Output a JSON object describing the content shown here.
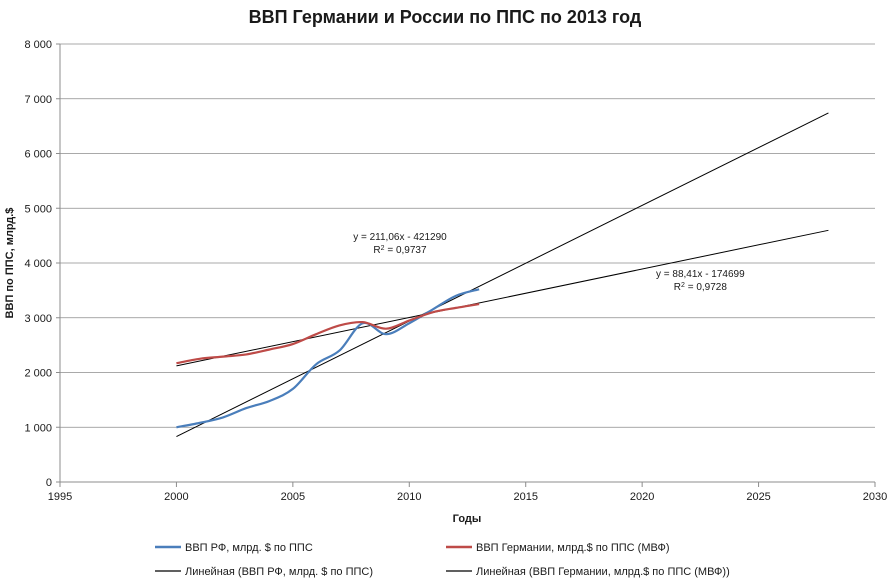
{
  "chart_data": {
    "type": "line",
    "title": "ВВП Германии и России по ППС по 2013 год",
    "xlabel": "Годы",
    "ylabel": "ВВП по ППС, млрд.$",
    "xlim": [
      1995,
      2030
    ],
    "ylim": [
      0,
      8000
    ],
    "x_ticks": [
      1995,
      2000,
      2005,
      2010,
      2015,
      2020,
      2025,
      2030
    ],
    "y_ticks": [
      0,
      1000,
      2000,
      3000,
      4000,
      5000,
      6000,
      7000,
      8000
    ],
    "y_tick_labels": [
      "0",
      "1 000",
      "2 000",
      "3 000",
      "4 000",
      "5 000",
      "6 000",
      "7 000",
      "8 000"
    ],
    "grid": "horizontal",
    "legend_position": "bottom",
    "series": [
      {
        "name": "ВВП РФ, млрд. $ по ППС",
        "color": "#4a7ebb",
        "x": [
          2000,
          2001,
          2002,
          2003,
          2004,
          2005,
          2006,
          2007,
          2008,
          2009,
          2010,
          2011,
          2012,
          2013
        ],
        "y": [
          1000,
          1080,
          1180,
          1350,
          1480,
          1700,
          2150,
          2400,
          2900,
          2700,
          2900,
          3150,
          3400,
          3520
        ]
      },
      {
        "name": "ВВП Германии, млрд.$ по ППС (МВФ)",
        "color": "#be4b48",
        "x": [
          2000,
          2001,
          2002,
          2003,
          2004,
          2005,
          2006,
          2007,
          2008,
          2009,
          2010,
          2011,
          2012,
          2013
        ],
        "y": [
          2170,
          2250,
          2290,
          2330,
          2420,
          2520,
          2700,
          2860,
          2920,
          2800,
          2950,
          3100,
          3180,
          3250
        ]
      },
      {
        "name": "Линейная (ВВП РФ, млрд. $ по ППС)",
        "color": "#000000",
        "type": "trendline",
        "x": [
          2000,
          2028
        ],
        "y": [
          830,
          6740
        ]
      },
      {
        "name": "Линейная (ВВП Германии, млрд.$ по ППС (МВФ))",
        "color": "#000000",
        "type": "trendline",
        "x": [
          2000,
          2028
        ],
        "y": [
          2121,
          4597
        ]
      }
    ],
    "annotations": [
      {
        "equation": "y = 211,06x - 421290",
        "r2_prefix": "R",
        "r2_sup": "2",
        "r2_value": " = 0,9737",
        "x": 2009.6,
        "y": 4420
      },
      {
        "equation": "y = 88,41x - 174699",
        "r2_prefix": "R",
        "r2_sup": "2",
        "r2_value": " = 0,9728",
        "x": 2022.5,
        "y": 3740
      }
    ]
  }
}
